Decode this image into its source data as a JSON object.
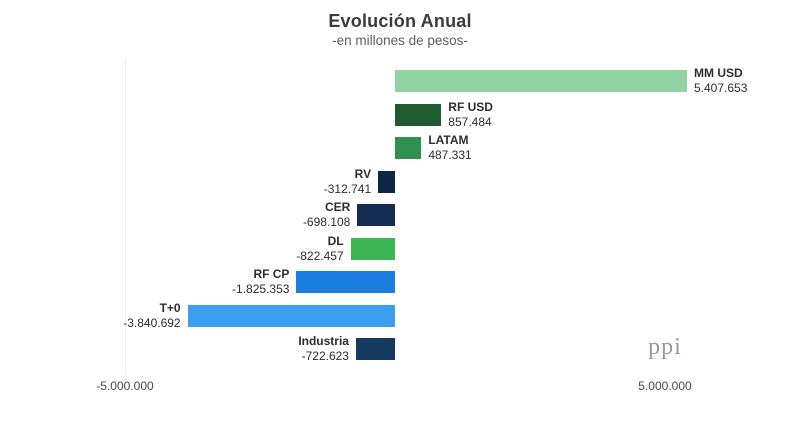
{
  "header": {
    "title": "Evolución Anual",
    "subtitle": "-en millones de pesos-"
  },
  "footer": {
    "brand": "ppi"
  },
  "chart_data": {
    "type": "bar",
    "orientation": "horizontal",
    "title": "Evolución Anual",
    "subtitle": "-en millones de pesos-",
    "xlabel": "",
    "ylabel": "",
    "xlim": [
      -5000000,
      5000000
    ],
    "grid": false,
    "legend": "none",
    "x_tick_labels": [
      "-5.000.000",
      "5.000.000"
    ],
    "categories": [
      "MM USD",
      "RF USD",
      "LATAM",
      "RV",
      "CER",
      "DL",
      "RF CP",
      "T+0",
      "Industria"
    ],
    "values": [
      5407653,
      857484,
      487331,
      -312741,
      -698108,
      -822457,
      -1825353,
      -3840692,
      -722623
    ],
    "value_labels": [
      "5.407.653",
      "857.484",
      "487.331",
      "-312.741",
      "-698.108",
      "-822.457",
      "-1.825.353",
      "-3.840.692",
      "-722.623"
    ],
    "colors": [
      "#92d3a2",
      "#1e5b2e",
      "#2e9150",
      "#0f2745",
      "#142c50",
      "#3cb554",
      "#1a7ee0",
      "#3b9ff0",
      "#15395f"
    ]
  }
}
